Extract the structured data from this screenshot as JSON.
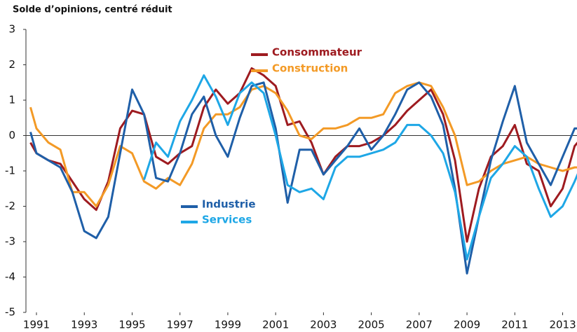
{
  "chart_data": {
    "type": "line",
    "title": "Solde d’opinions, centré réduit",
    "x": [
      1990.75,
      1991.0,
      1991.5,
      1992.0,
      1992.5,
      1993.0,
      1993.5,
      1994.0,
      1994.5,
      1995.0,
      1995.5,
      1996.0,
      1996.5,
      1997.0,
      1997.5,
      1998.0,
      1998.5,
      1999.0,
      1999.5,
      2000.0,
      2000.5,
      2001.0,
      2001.5,
      2002.0,
      2002.5,
      2003.0,
      2003.5,
      2004.0,
      2004.5,
      2005.0,
      2005.5,
      2006.0,
      2006.5,
      2007.0,
      2007.5,
      2008.0,
      2008.5,
      2009.0,
      2009.5,
      2010.0,
      2010.5,
      2011.0,
      2011.5,
      2012.0,
      2012.5,
      2013.0,
      2013.5,
      2013.75
    ],
    "series": [
      {
        "name": "Consommateur",
        "color": "#9e1b20",
        "values": [
          -0.2,
          -0.5,
          -0.7,
          -0.8,
          -1.3,
          -1.8,
          -2.1,
          -1.3,
          0.2,
          0.7,
          0.6,
          -0.6,
          -0.8,
          -0.5,
          -0.3,
          0.8,
          1.3,
          0.9,
          1.2,
          1.9,
          1.7,
          1.4,
          0.3,
          0.4,
          -0.2,
          -1.1,
          -0.6,
          -0.3,
          -0.3,
          -0.2,
          0.0,
          0.3,
          0.7,
          1.0,
          1.3,
          0.6,
          -0.7,
          -3.0,
          -1.5,
          -0.6,
          -0.3,
          0.3,
          -0.8,
          -1.0,
          -2.0,
          -1.5,
          -0.3,
          -0.1
        ]
      },
      {
        "name": "Construction",
        "color": "#f39a26",
        "values": [
          0.8,
          0.2,
          -0.2,
          -0.4,
          -1.6,
          -1.6,
          -2.0,
          -1.4,
          -0.3,
          -0.5,
          -1.3,
          -1.5,
          -1.2,
          -1.4,
          -0.8,
          0.2,
          0.6,
          0.6,
          0.8,
          1.3,
          1.4,
          1.2,
          0.7,
          0.0,
          -0.1,
          0.2,
          0.2,
          0.3,
          0.5,
          0.5,
          0.6,
          1.2,
          1.4,
          1.5,
          1.4,
          0.8,
          0.0,
          -1.4,
          -1.3,
          -1.0,
          -0.8,
          -0.7,
          -0.6,
          -0.8,
          -0.9,
          -1.0,
          -0.9,
          -0.9
        ]
      },
      {
        "name": "Industrie",
        "color": "#1f5fa8",
        "values": [
          0.1,
          -0.5,
          -0.7,
          -0.9,
          -1.6,
          -2.7,
          -2.9,
          -2.3,
          -0.5,
          1.3,
          0.6,
          -1.2,
          -1.3,
          -0.5,
          0.6,
          1.1,
          0.0,
          -0.6,
          0.5,
          1.4,
          1.5,
          0.2,
          -1.9,
          -0.4,
          -0.4,
          -1.1,
          -0.7,
          -0.3,
          0.2,
          -0.4,
          0.0,
          0.6,
          1.3,
          1.5,
          1.1,
          0.3,
          -1.5,
          -3.9,
          -2.3,
          -0.7,
          0.4,
          1.4,
          -0.2,
          -0.8,
          -1.4,
          -0.6,
          0.2,
          0.2
        ]
      },
      {
        "name": "Services",
        "color": "#1ea7e6",
        "values": [
          null,
          null,
          null,
          null,
          null,
          null,
          null,
          null,
          null,
          null,
          -1.25,
          -0.2,
          -0.6,
          0.4,
          1.0,
          1.7,
          1.1,
          0.3,
          1.2,
          1.5,
          1.2,
          0.0,
          -1.4,
          -1.6,
          -1.5,
          -1.8,
          -0.9,
          -0.6,
          -0.6,
          -0.5,
          -0.4,
          -0.2,
          0.3,
          0.3,
          0.0,
          -0.5,
          -1.6,
          -3.5,
          -2.3,
          -1.2,
          -0.8,
          -0.3,
          -0.6,
          -1.5,
          -2.3,
          -2.0,
          -1.3,
          -0.9
        ]
      }
    ],
    "xlim": [
      1990.56,
      2013.6
    ],
    "xticks": [
      1991,
      1993,
      1995,
      1997,
      1999,
      2001,
      2003,
      2005,
      2007,
      2009,
      2011,
      2013
    ],
    "ylim": [
      -5,
      3
    ],
    "yticks": [
      -5,
      -4,
      -3,
      -2,
      -1,
      0,
      1,
      2,
      3
    ]
  }
}
